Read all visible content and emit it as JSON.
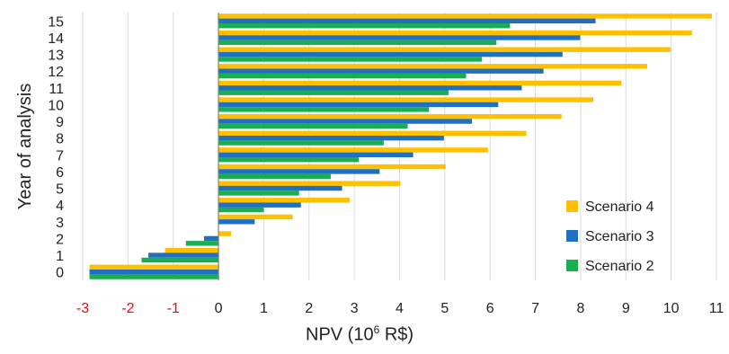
{
  "chart_data": {
    "type": "bar",
    "orientation": "horizontal",
    "categories": [
      "0",
      "1",
      "2",
      "3",
      "4",
      "5",
      "6",
      "7",
      "8",
      "9",
      "10",
      "11",
      "12",
      "13",
      "14",
      "15"
    ],
    "series": [
      {
        "name": "Scenario 2",
        "color": "#1aae50",
        "values": [
          -2.85,
          -1.7,
          -0.72,
          0.0,
          1.0,
          1.78,
          2.48,
          3.1,
          3.65,
          4.18,
          4.65,
          5.08,
          5.47,
          5.82,
          6.14,
          6.44
        ]
      },
      {
        "name": "Scenario 3",
        "color": "#1f6fc5",
        "values": [
          -2.85,
          -1.55,
          -0.32,
          0.8,
          1.82,
          2.73,
          3.56,
          4.3,
          4.98,
          5.6,
          6.18,
          6.7,
          7.18,
          7.6,
          7.99,
          8.33
        ]
      },
      {
        "name": "Scenario 4",
        "color": "#ffc000",
        "values": [
          -2.85,
          -1.18,
          0.28,
          1.64,
          2.9,
          4.02,
          5.02,
          5.95,
          6.8,
          7.58,
          8.28,
          8.9,
          9.47,
          9.99,
          10.46,
          10.9
        ]
      }
    ],
    "xlim": [
      -3,
      11
    ],
    "xticks": [
      "-3",
      "-2",
      "-1",
      "0",
      "1",
      "2",
      "3",
      "4",
      "5",
      "6",
      "7",
      "8",
      "9",
      "10",
      "11"
    ],
    "xlabel_main": "NPV (10",
    "xlabel_sup": "6",
    "xlabel_end": " R$)",
    "ylabel": "Year of analysis",
    "grid": "vertical",
    "legend_position": "bottom-right",
    "negative_tick_color": "#ff0000"
  }
}
